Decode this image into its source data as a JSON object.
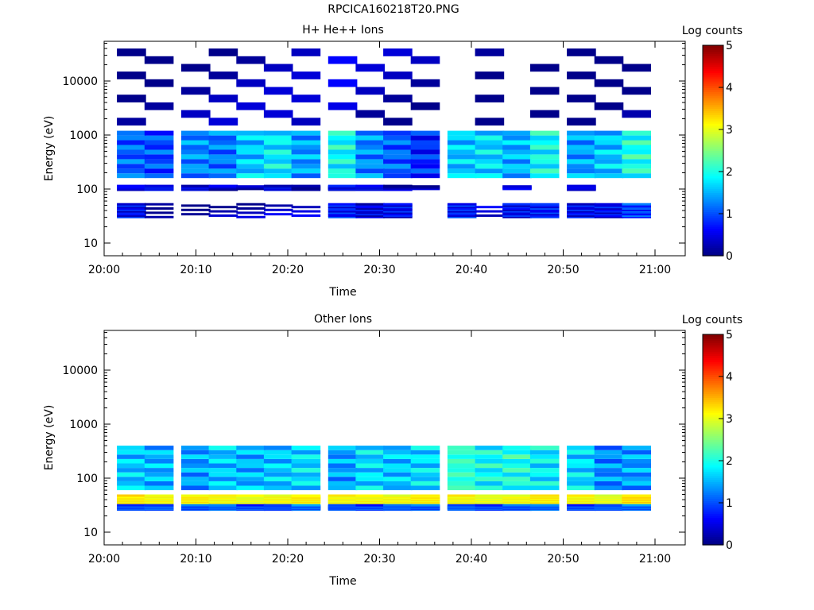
{
  "page_title": "RPCICA160218T20.PNG",
  "colors": {
    "axes": "#000000",
    "background": "#ffffff"
  },
  "chart_data": [
    {
      "type": "heatmap",
      "title": "H+ He++ Ions",
      "xlabel": "Time",
      "ylabel": "Energy (eV)",
      "x_tick_labels": [
        "20:00",
        "20:10",
        "20:20",
        "20:30",
        "20:40",
        "20:50",
        "21:00"
      ],
      "y_tick_labels": [
        "10",
        "100",
        "1000",
        "10000"
      ],
      "y_scale": "log",
      "colorbar": {
        "label": "Log counts",
        "range": [
          0,
          5
        ],
        "tick_labels": [
          "0",
          "1",
          "2",
          "3",
          "4",
          "5"
        ]
      },
      "time_bins": [
        "20:03",
        "20:06",
        "20:10",
        "20:13",
        "20:16",
        "20:19",
        "20:22",
        "20:26",
        "20:29",
        "20:32",
        "20:35",
        "20:39",
        "20:42",
        "20:45",
        "20:48",
        "20:52",
        "20:55",
        "20:58"
      ],
      "energy_bands_eV": [
        {
          "e_min": 100,
          "e_max": 120,
          "levels": [
            0.3,
            0.6,
            0.5,
            0.4,
            0.4,
            0.5,
            0.4,
            0.5,
            0.5,
            0.4,
            0.3,
            0,
            0,
            0.3,
            0,
            0.2,
            0,
            0
          ]
        },
        {
          "e_min": 160,
          "e_max": 1200,
          "levels": [
            1.1,
            1.0,
            1.3,
            1.2,
            1.6,
            1.8,
            1.4,
            1.9,
            1.3,
            1.1,
            0.8,
            1.6,
            1.7,
            1.5,
            1.9,
            1.4,
            1.6,
            2.0
          ]
        },
        {
          "e_min": 30,
          "e_max": 55,
          "levels": [
            0.6,
            0.4,
            0.3,
            0.4,
            0.3,
            0.4,
            0.3,
            0.7,
            0.5,
            0.6,
            0,
            0.7,
            0.4,
            0.6,
            0.7,
            0.6,
            0.6,
            0.9
          ]
        },
        {
          "e_min": 1500,
          "e_max": 40000,
          "levels": [
            0.1,
            0.1,
            0.1,
            0.1,
            0.1,
            0.1,
            0.1,
            0.3,
            0.1,
            0.1,
            0.1,
            0,
            0.1,
            0,
            0.1,
            0.1,
            0.1,
            0.1
          ]
        }
      ]
    },
    {
      "type": "heatmap",
      "title": "Other Ions",
      "xlabel": "Time",
      "ylabel": "Energy (eV)",
      "x_tick_labels": [
        "20:00",
        "20:10",
        "20:20",
        "20:30",
        "20:40",
        "20:50",
        "21:00"
      ],
      "y_tick_labels": [
        "10",
        "100",
        "1000",
        "10000"
      ],
      "y_scale": "log",
      "colorbar": {
        "label": "Log counts",
        "range": [
          0,
          5
        ],
        "tick_labels": [
          "0",
          "1",
          "2",
          "3",
          "4",
          "5"
        ]
      },
      "time_bins": [
        "20:03",
        "20:06",
        "20:10",
        "20:13",
        "20:16",
        "20:19",
        "20:22",
        "20:26",
        "20:29",
        "20:32",
        "20:35",
        "20:39",
        "20:42",
        "20:45",
        "20:48",
        "20:52",
        "20:55",
        "20:58"
      ],
      "energy_bands_eV": [
        {
          "e_min": 35,
          "e_max": 50,
          "levels": [
            3.2,
            3.1,
            3.2,
            3.1,
            3.0,
            3.1,
            3.2,
            3.1,
            3.1,
            3.1,
            3.2,
            3.1,
            3.0,
            3.1,
            3.2,
            3.1,
            3.0,
            3.3
          ]
        },
        {
          "e_min": 60,
          "e_max": 400,
          "levels": [
            1.6,
            1.5,
            1.4,
            1.6,
            1.5,
            1.6,
            1.7,
            1.4,
            1.7,
            1.6,
            1.7,
            2.1,
            1.9,
            2.0,
            1.8,
            1.7,
            1.3,
            1.4
          ]
        },
        {
          "e_min": 27,
          "e_max": 33,
          "levels": [
            1.0,
            1.1,
            1.0,
            1.1,
            1.0,
            1.0,
            1.1,
            1.0,
            1.0,
            1.1,
            1.0,
            1.1,
            1.0,
            1.0,
            1.1,
            1.0,
            1.1,
            1.1
          ]
        }
      ]
    }
  ]
}
